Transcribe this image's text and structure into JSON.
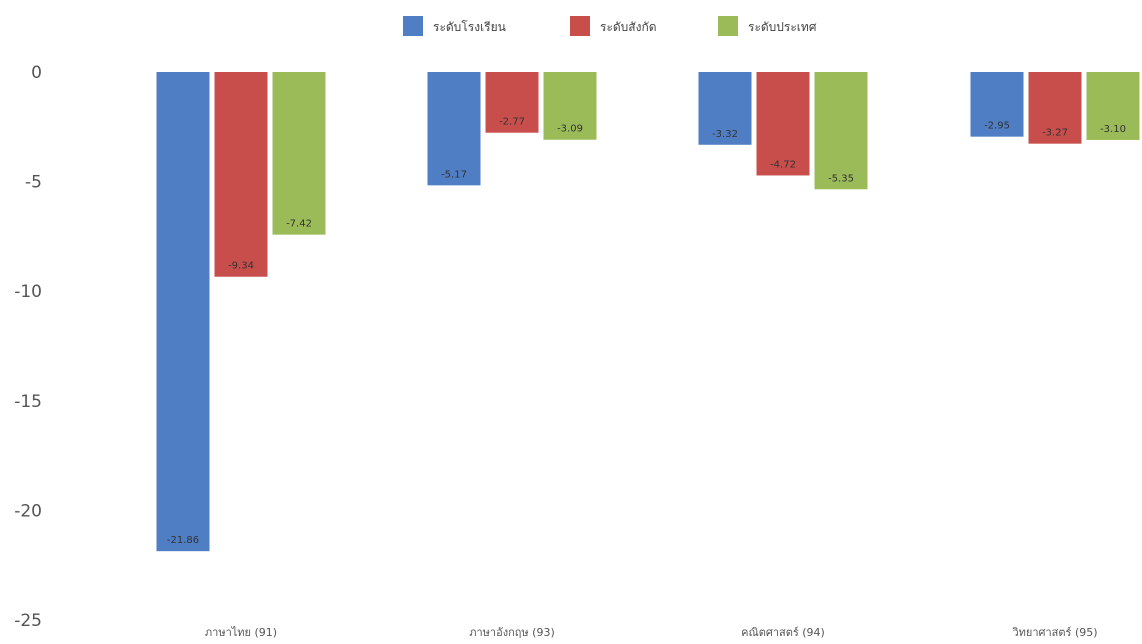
{
  "chart_data": {
    "type": "bar",
    "title": "",
    "xlabel": "",
    "ylabel": "",
    "ylim": [
      -25,
      0
    ],
    "yticks": [
      0,
      -5,
      -10,
      -15,
      -20,
      -25
    ],
    "grid": false,
    "legend_position": "top-center",
    "categories": [
      "ภาษาไทย (91)",
      "ภาษาอังกฤษ (93)",
      "คณิตศาสตร์ (94)",
      "วิทยาศาสตร์ (95)"
    ],
    "series": [
      {
        "name": "ระดับโรงเรียน",
        "color": "#4F7EC4",
        "values": [
          -21.86,
          -5.17,
          -3.32,
          -2.95
        ],
        "labels": [
          "-21.86",
          "-5.17",
          "-3.32",
          "-2.95"
        ]
      },
      {
        "name": "ระดับสังกัด",
        "color": "#C84E4C",
        "values": [
          -9.34,
          -2.77,
          -4.72,
          -3.27
        ],
        "labels": [
          "-9.34",
          "-2.77",
          "-4.72",
          "-3.27"
        ]
      },
      {
        "name": "ระดับประเทศ",
        "color": "#9BBB59",
        "values": [
          -7.42,
          -3.09,
          -5.35,
          -3.1
        ],
        "labels": [
          "-7.42",
          "-3.09",
          "-5.35",
          "-3.10"
        ]
      }
    ]
  }
}
